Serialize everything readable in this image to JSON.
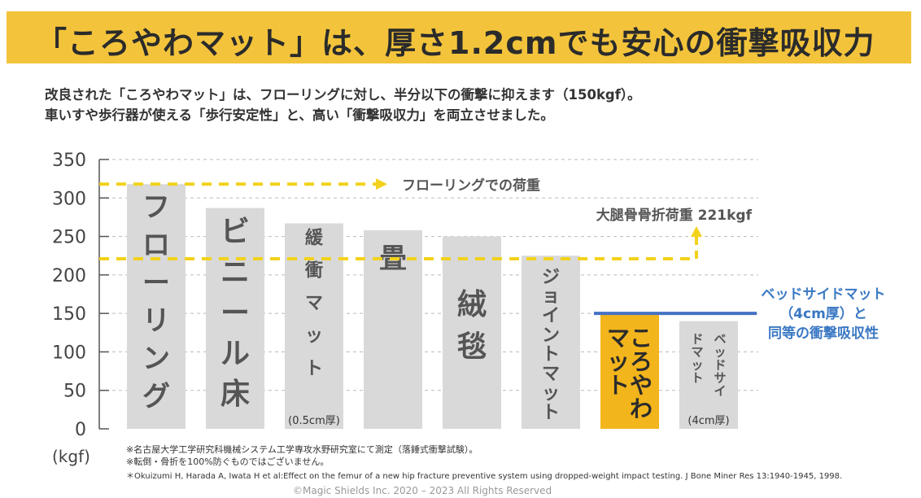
{
  "header": {
    "title": "「ころやわマット」は、厚さ1.2cmでも安心の衝撃吸収力"
  },
  "intro": {
    "line1": "改良された「ころやわマット」は、フローリングに対し、半分以下の衝撃に抑えます（150kgf）。",
    "line2": "車いすや歩行器が使える「歩行安定性」と、高い「衝撃吸収力」を両立させました。"
  },
  "chart_data": {
    "type": "bar",
    "categories": [
      "フローリング",
      "ビニール床",
      "緩衝マット",
      "畳",
      "絨毯",
      "ジョイントマット",
      "ころやわマット",
      "ベッドサイドマット"
    ],
    "values": [
      318,
      287,
      267,
      258,
      250,
      225,
      150,
      140
    ],
    "bar_text": [
      "フローリング",
      "ビニール床",
      "緩衝マット",
      "畳",
      "絨毯",
      "ジョイントマット",
      "ころやわマット",
      "ベッドサイドマット"
    ],
    "bar_subtext": [
      "",
      "",
      "(0.5cm厚)",
      "",
      "",
      "",
      "",
      "(4cm厚)"
    ],
    "highlight_index": 6,
    "ylim": [
      0,
      350
    ],
    "yticks": [
      "0",
      "50",
      "100",
      "150",
      "200",
      "250",
      "300",
      "350"
    ],
    "ylabel": "(kgf)",
    "reference_lines": [
      {
        "value": 318,
        "label": "フローリングでの荷重"
      },
      {
        "value": 221,
        "label": "大腿骨骨折荷重 221kgf"
      },
      {
        "value": 150,
        "label": "ベッドサイドマット（4cm厚）と同等の衝撃吸収性"
      }
    ],
    "annotation": {
      "line1": "ベッドサイドマット",
      "line2": "（4cm厚）と",
      "line3": "同等の衝撃吸収性"
    },
    "grid": true,
    "colors": {
      "bar": "#d9d9d9",
      "bar_text": "#555555",
      "highlight": "#f3b51c",
      "reference": "#f2d21c",
      "blue_line": "#4472c4",
      "annotation_text": "#3a78c3",
      "axis": "#555555",
      "grid": "#bbbbbb"
    }
  },
  "notes": {
    "line1": "※名古屋大学工学研究科機械システム工学専攻水野研究室にて測定（落錘式衝撃試験）。",
    "line2": "※転倒・骨折を100%防ぐものではございません。",
    "line3": "＊Okuizumi H, Harada A, Iwata H et al:Effect on the femur of a new hip fracture preventive system using dropped-weight impact testing. J Bone Miner Res 13:1940-1945, 1998."
  },
  "footer": {
    "copyright": "©Magic Shields Inc. 2020 – 2023 All Rights Reserved"
  }
}
